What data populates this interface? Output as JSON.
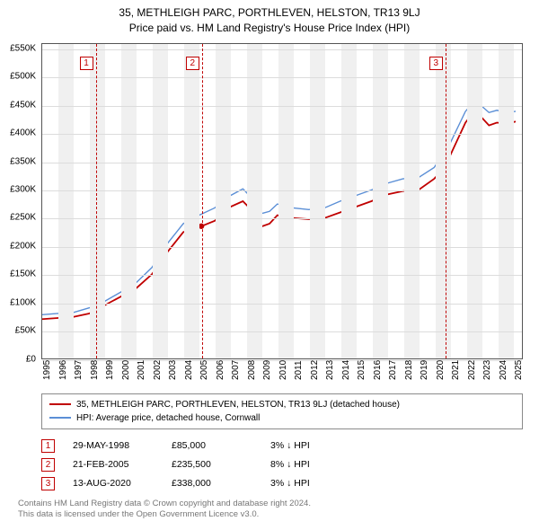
{
  "title": {
    "line1": "35, METHLEIGH PARC, PORTHLEVEN, HELSTON, TR13 9LJ",
    "line2": "Price paid vs. HM Land Registry's House Price Index (HPI)"
  },
  "chart": {
    "type": "line",
    "background_color": "#ffffff",
    "grid_color": "#dcdcdc",
    "band_color": "#f0f0f0",
    "border_color": "#555555",
    "x": {
      "ticks": [
        "1995",
        "1996",
        "1997",
        "1998",
        "1999",
        "2000",
        "2001",
        "2002",
        "2003",
        "2004",
        "2005",
        "2006",
        "2007",
        "2008",
        "2009",
        "2010",
        "2011",
        "2012",
        "2013",
        "2014",
        "2015",
        "2016",
        "2017",
        "2018",
        "2019",
        "2020",
        "2021",
        "2022",
        "2023",
        "2024",
        "2025"
      ],
      "min": 1995,
      "max": 2025.6
    },
    "y": {
      "ticks": [
        "£0",
        "£50K",
        "£100K",
        "£150K",
        "£200K",
        "£250K",
        "£300K",
        "£350K",
        "£400K",
        "£450K",
        "£500K",
        "£550K"
      ],
      "tick_values": [
        0,
        50000,
        100000,
        150000,
        200000,
        250000,
        300000,
        350000,
        400000,
        450000,
        500000,
        550000
      ],
      "min": 0,
      "max": 560000
    },
    "series": [
      {
        "id": "price_paid",
        "label": "35, METHLEIGH PARC, PORTHLEVEN, HELSTON, TR13 9LJ (detached house)",
        "color": "#c00000",
        "stroke_width": 1.8,
        "points": [
          [
            1995.0,
            70000
          ],
          [
            1996.0,
            72000
          ],
          [
            1997.0,
            74000
          ],
          [
            1998.0,
            80000
          ],
          [
            1998.4,
            85000
          ],
          [
            1999.0,
            95000
          ],
          [
            2000.0,
            110000
          ],
          [
            2001.0,
            125000
          ],
          [
            2002.0,
            150000
          ],
          [
            2003.0,
            190000
          ],
          [
            2004.0,
            225000
          ],
          [
            2005.0,
            235000
          ],
          [
            2005.15,
            235500
          ],
          [
            2006.0,
            245000
          ],
          [
            2007.0,
            270000
          ],
          [
            2007.8,
            280000
          ],
          [
            2008.5,
            260000
          ],
          [
            2009.0,
            235000
          ],
          [
            2009.5,
            240000
          ],
          [
            2010.0,
            255000
          ],
          [
            2011.0,
            250000
          ],
          [
            2012.0,
            248000
          ],
          [
            2013.0,
            250000
          ],
          [
            2014.0,
            260000
          ],
          [
            2015.0,
            270000
          ],
          [
            2016.0,
            280000
          ],
          [
            2017.0,
            292000
          ],
          [
            2018.0,
            298000
          ],
          [
            2019.0,
            300000
          ],
          [
            2020.0,
            320000
          ],
          [
            2020.62,
            338000
          ],
          [
            2021.0,
            360000
          ],
          [
            2022.0,
            420000
          ],
          [
            2022.7,
            445000
          ],
          [
            2023.0,
            430000
          ],
          [
            2023.5,
            415000
          ],
          [
            2024.0,
            420000
          ],
          [
            2024.7,
            418000
          ],
          [
            2025.2,
            422000
          ]
        ],
        "marker_points": [
          [
            1998.4,
            85000
          ],
          [
            2005.15,
            235500
          ],
          [
            2020.62,
            338000
          ]
        ]
      },
      {
        "id": "hpi",
        "label": "HPI: Average price, detached house, Cornwall",
        "color": "#5b8fd6",
        "stroke_width": 1.4,
        "points": [
          [
            1995.0,
            78000
          ],
          [
            1996.0,
            80000
          ],
          [
            1997.0,
            82000
          ],
          [
            1998.0,
            90000
          ],
          [
            1999.0,
            102000
          ],
          [
            2000.0,
            118000
          ],
          [
            2001.0,
            135000
          ],
          [
            2002.0,
            162000
          ],
          [
            2003.0,
            205000
          ],
          [
            2004.0,
            240000
          ],
          [
            2005.0,
            255000
          ],
          [
            2006.0,
            268000
          ],
          [
            2007.0,
            290000
          ],
          [
            2007.8,
            302000
          ],
          [
            2008.5,
            282000
          ],
          [
            2009.0,
            258000
          ],
          [
            2009.5,
            262000
          ],
          [
            2010.0,
            275000
          ],
          [
            2011.0,
            268000
          ],
          [
            2012.0,
            265000
          ],
          [
            2013.0,
            268000
          ],
          [
            2014.0,
            280000
          ],
          [
            2015.0,
            290000
          ],
          [
            2016.0,
            300000
          ],
          [
            2017.0,
            312000
          ],
          [
            2018.0,
            320000
          ],
          [
            2019.0,
            322000
          ],
          [
            2020.0,
            340000
          ],
          [
            2021.0,
            382000
          ],
          [
            2022.0,
            440000
          ],
          [
            2022.7,
            462000
          ],
          [
            2023.0,
            450000
          ],
          [
            2023.5,
            438000
          ],
          [
            2024.0,
            442000
          ],
          [
            2024.7,
            438000
          ],
          [
            2025.2,
            440000
          ]
        ]
      }
    ],
    "event_lines": [
      {
        "id": "1",
        "x": 1998.4,
        "marker_top_pct": 4
      },
      {
        "id": "2",
        "x": 2005.15,
        "marker_top_pct": 4
      },
      {
        "id": "3",
        "x": 2020.62,
        "marker_top_pct": 4
      }
    ]
  },
  "legend": {
    "items": [
      {
        "color": "#c00000",
        "label": "35, METHLEIGH PARC, PORTHLEVEN, HELSTON, TR13 9LJ (detached house)"
      },
      {
        "color": "#5b8fd6",
        "label": "HPI: Average price, detached house, Cornwall"
      }
    ]
  },
  "events_table": [
    {
      "id": "1",
      "date": "29-MAY-1998",
      "price": "£85,000",
      "delta": "3% ↓ HPI"
    },
    {
      "id": "2",
      "date": "21-FEB-2005",
      "price": "£235,500",
      "delta": "8% ↓ HPI"
    },
    {
      "id": "3",
      "date": "13-AUG-2020",
      "price": "£338,000",
      "delta": "3% ↓ HPI"
    }
  ],
  "attribution": {
    "line1": "Contains HM Land Registry data © Crown copyright and database right 2024.",
    "line2": "This data is licensed under the Open Government Licence v3.0."
  }
}
